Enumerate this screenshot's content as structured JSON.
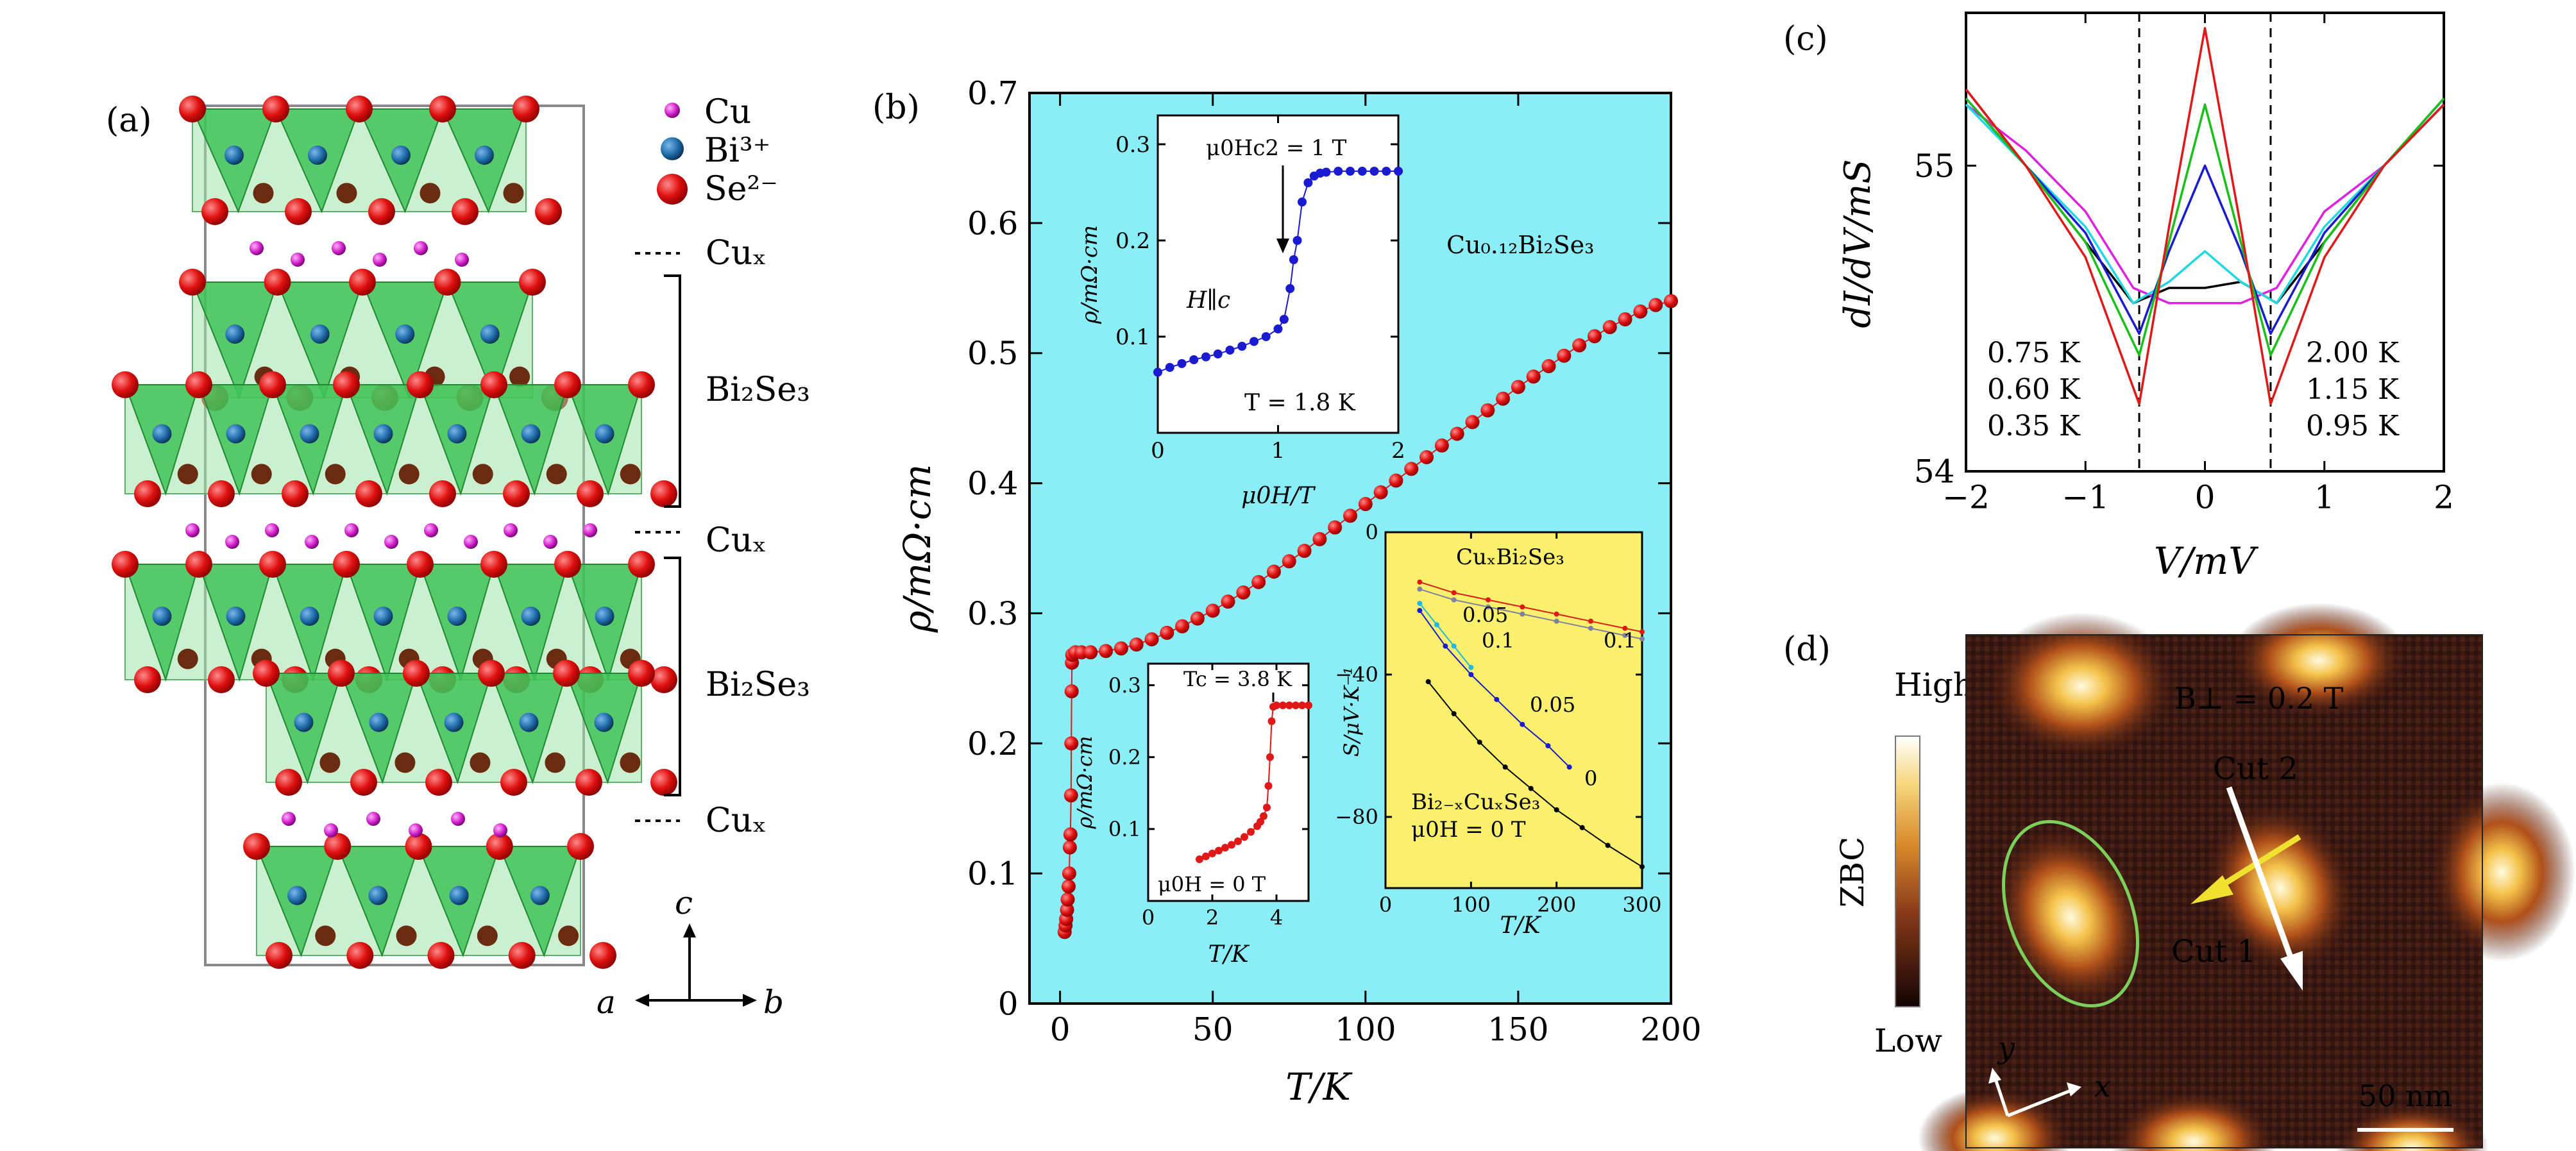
{
  "panel_a": {
    "label": "(a)",
    "legend": [
      {
        "text": "Cu",
        "color": "#d020c8"
      },
      {
        "text": "Bi³⁺",
        "color": "#1e6aa8"
      },
      {
        "text": "Se²⁻",
        "color": "#e01010"
      }
    ],
    "layer_labels": [
      "Cuₓ",
      "Bi₂Se₃",
      "Cuₓ",
      "Bi₂Se₃",
      "Cuₓ"
    ],
    "axes": {
      "c": "c",
      "a": "a",
      "b": "b"
    },
    "colors": {
      "octahedron": "#2fbe4a",
      "octahedron_light": "#9ee3a8",
      "se": "#e01010",
      "bi": "#1e6aa8",
      "cu": "#d020c8"
    }
  },
  "panel_b": {
    "label": "(b)",
    "background": "#8aeef6",
    "compound": "Cu₀.₁₂Bi₂Se₃",
    "xlabel": "T/K",
    "ylabel": "ρ/mΩ·cm",
    "xticks": [
      "0",
      "50",
      "100",
      "150",
      "200"
    ],
    "yticks": [
      "0",
      "0.1",
      "0.2",
      "0.3",
      "0.4",
      "0.5",
      "0.6",
      "0.7"
    ],
    "inset_field": {
      "annotation": "μ0Hc2 = 1 T",
      "orientation": "H∥c",
      "temperature": "T = 1.8 K",
      "xlabel": "μ0H/T",
      "ylabel": "ρ/mΩ·cm",
      "xticks": [
        "0",
        "1",
        "2"
      ],
      "yticks": [
        "0.1",
        "0.2",
        "0.3"
      ]
    },
    "inset_tc": {
      "annotation": "Tc = 3.8 K",
      "field": "μ0H = 0 T",
      "xlabel": "T/K",
      "ylabel": "ρ/mΩ·cm",
      "xticks": [
        "0",
        "2",
        "4"
      ],
      "yticks": [
        "0.1",
        "0.2",
        "0.3"
      ]
    },
    "inset_seebeck": {
      "background": "#fbf06b",
      "title": "CuₓBi₂Se₃",
      "lower_title": "Bi₂₋ₓCuₓSe₃",
      "field": "μ0H = 0 T",
      "xlabel": "T/K",
      "ylabel": "S/μV·K⁻¹",
      "xticks": [
        "0",
        "100",
        "200",
        "300"
      ],
      "yticks": [
        "0",
        "−40",
        "−80"
      ],
      "curve_labels": [
        "0.05",
        "0.1",
        "0.1",
        "0.05",
        "0"
      ]
    }
  },
  "panel_c": {
    "label": "(c)",
    "xlabel": "V/mV",
    "ylabel": "dI/dV/mS",
    "xticks": [
      "−2",
      "−1",
      "0",
      "1",
      "2"
    ],
    "yticks": [
      "54",
      "55"
    ],
    "legend_left": [
      {
        "text": "0.75 K",
        "color": "#1a1ad0"
      },
      {
        "text": "0.60 K",
        "color": "#18c018"
      },
      {
        "text": "0.35 K",
        "color": "#e01818"
      }
    ],
    "legend_right": [
      {
        "text": "2.00 K",
        "color": "#000000"
      },
      {
        "text": "1.15 K",
        "color": "#e020e0"
      },
      {
        "text": "0.95 K",
        "color": "#20d8e0"
      }
    ]
  },
  "panel_d": {
    "label": "(d)",
    "field": "B⊥ = 0.2 T",
    "colorbar": {
      "label": "ZBC",
      "high": "High",
      "low": "Low"
    },
    "cut1": "Cut 1",
    "cut2": "Cut 2",
    "axis_x": "x",
    "axis_y": "y",
    "scalebar": "50 nm"
  },
  "chart_data": [
    {
      "type": "scatter",
      "panel": "b-main",
      "xlabel": "T/K",
      "ylabel": "ρ/mΩ·cm",
      "xlim": [
        -10,
        200
      ],
      "ylim": [
        0,
        0.7
      ],
      "series": [
        {
          "name": "Cu₀.₁₂Bi₂Se₃",
          "color": "#e01818",
          "x": [
            1.5,
            1.8,
            2.0,
            2.3,
            2.5,
            2.8,
            3.0,
            3.2,
            3.4,
            3.6,
            3.7,
            3.8,
            3.9,
            4.0,
            5,
            7,
            10,
            15,
            20,
            25,
            30,
            35,
            40,
            45,
            50,
            55,
            60,
            65,
            70,
            75,
            80,
            85,
            90,
            95,
            100,
            105,
            110,
            115,
            120,
            125,
            130,
            135,
            140,
            145,
            150,
            155,
            160,
            165,
            170,
            175,
            180,
            185,
            190,
            195,
            200
          ],
          "y": [
            0.055,
            0.06,
            0.065,
            0.072,
            0.08,
            0.09,
            0.1,
            0.12,
            0.13,
            0.16,
            0.2,
            0.24,
            0.262,
            0.268,
            0.27,
            0.27,
            0.27,
            0.271,
            0.273,
            0.276,
            0.28,
            0.285,
            0.29,
            0.296,
            0.302,
            0.309,
            0.316,
            0.324,
            0.332,
            0.34,
            0.348,
            0.357,
            0.366,
            0.375,
            0.384,
            0.393,
            0.402,
            0.411,
            0.42,
            0.429,
            0.438,
            0.447,
            0.456,
            0.465,
            0.474,
            0.482,
            0.49,
            0.498,
            0.506,
            0.513,
            0.52,
            0.526,
            0.532,
            0.537,
            0.54
          ]
        }
      ]
    },
    {
      "type": "scatter",
      "panel": "b-inset-field",
      "xlabel": "μ0H/T",
      "ylabel": "ρ/mΩ·cm",
      "xlim": [
        0,
        2
      ],
      "ylim": [
        0.0,
        0.33
      ],
      "series": [
        {
          "name": "H∥c, T = 1.8 K",
          "color": "#1a1ad0",
          "x": [
            0,
            0.1,
            0.2,
            0.3,
            0.4,
            0.5,
            0.6,
            0.7,
            0.8,
            0.9,
            1.0,
            1.05,
            1.1,
            1.13,
            1.16,
            1.2,
            1.25,
            1.3,
            1.35,
            1.4,
            1.5,
            1.6,
            1.7,
            1.8,
            1.9,
            2.0
          ],
          "y": [
            0.063,
            0.068,
            0.072,
            0.076,
            0.079,
            0.082,
            0.086,
            0.09,
            0.095,
            0.1,
            0.108,
            0.118,
            0.15,
            0.18,
            0.2,
            0.24,
            0.26,
            0.267,
            0.27,
            0.271,
            0.272,
            0.272,
            0.272,
            0.272,
            0.272,
            0.272
          ]
        }
      ]
    },
    {
      "type": "scatter",
      "panel": "b-inset-tc",
      "xlabel": "T/K",
      "ylabel": "ρ/mΩ·cm",
      "xlim": [
        0,
        5
      ],
      "ylim": [
        0.0,
        0.33
      ],
      "series": [
        {
          "name": "μ0H = 0 T",
          "color": "#e01818",
          "x": [
            1.6,
            1.8,
            2.0,
            2.2,
            2.4,
            2.6,
            2.8,
            3.0,
            3.2,
            3.4,
            3.5,
            3.6,
            3.7,
            3.75,
            3.8,
            3.85,
            3.9,
            4.0,
            4.2,
            4.4,
            4.6,
            4.8,
            5.0
          ],
          "y": [
            0.058,
            0.062,
            0.066,
            0.07,
            0.074,
            0.078,
            0.083,
            0.089,
            0.096,
            0.104,
            0.11,
            0.118,
            0.13,
            0.16,
            0.2,
            0.25,
            0.27,
            0.272,
            0.272,
            0.272,
            0.272,
            0.272,
            0.272
          ]
        }
      ]
    },
    {
      "type": "line",
      "panel": "b-inset-seebeck",
      "xlabel": "T/K",
      "ylabel": "S/μV·K⁻¹",
      "xlim": [
        0,
        300
      ],
      "ylim": [
        -100,
        0
      ],
      "series": [
        {
          "name": "0",
          "color": "#000000",
          "x": [
            50,
            80,
            110,
            140,
            170,
            200,
            230,
            260,
            300
          ],
          "y": [
            -42,
            -51,
            -59,
            -66,
            -72,
            -78,
            -83,
            -88,
            -94
          ]
        },
        {
          "name": "0.05",
          "color": "#1a1ad0",
          "x": [
            40,
            70,
            100,
            130,
            160,
            190,
            215
          ],
          "y": [
            -22,
            -32,
            -40,
            -47,
            -54,
            -60,
            -66
          ]
        },
        {
          "name": "0.1",
          "color": "#20b8e0",
          "x": [
            40,
            60,
            80,
            100
          ],
          "y": [
            -20,
            -26,
            -32,
            -38
          ]
        },
        {
          "name": "CuₓBi₂Se₃ 0.1",
          "color": "#e01818",
          "x": [
            40,
            80,
            120,
            160,
            200,
            240,
            280,
            300
          ],
          "y": [
            -14,
            -17,
            -19,
            -21,
            -23,
            -25,
            -27,
            -28
          ]
        },
        {
          "name": "CuₓBi₂Se₃ 0.05",
          "color": "#8080a0",
          "x": [
            40,
            80,
            120,
            160,
            200,
            240,
            280,
            300
          ],
          "y": [
            -16,
            -19,
            -21,
            -23,
            -25,
            -27,
            -29,
            -30
          ]
        }
      ]
    },
    {
      "type": "line",
      "panel": "c",
      "xlabel": "V/mV",
      "ylabel": "dI/dV/mS",
      "xlim": [
        -2,
        2
      ],
      "ylim": [
        54,
        55.5
      ],
      "series": [
        {
          "name": "2.00 K",
          "color": "#000000",
          "x": [
            -2,
            -1.5,
            -1.0,
            -0.6,
            -0.3,
            0,
            0.3,
            0.6,
            1.0,
            1.5,
            2
          ],
          "y": [
            55.25,
            55.0,
            54.75,
            54.55,
            54.6,
            54.6,
            54.62,
            54.55,
            54.75,
            55.0,
            55.2
          ]
        },
        {
          "name": "1.15 K",
          "color": "#e020e0",
          "x": [
            -2,
            -1.5,
            -1.0,
            -0.6,
            -0.3,
            0,
            0.3,
            0.6,
            1.0,
            1.5,
            2
          ],
          "y": [
            55.2,
            55.05,
            54.85,
            54.6,
            54.55,
            54.55,
            54.55,
            54.6,
            54.85,
            55.0,
            55.2
          ]
        },
        {
          "name": "0.95 K",
          "color": "#20d8e0",
          "x": [
            -2,
            -1.5,
            -1.0,
            -0.6,
            -0.3,
            0,
            0.3,
            0.6,
            1.0,
            1.5,
            2
          ],
          "y": [
            55.2,
            55.0,
            54.8,
            54.55,
            54.62,
            54.72,
            54.62,
            54.55,
            54.8,
            55.0,
            55.2
          ]
        },
        {
          "name": "0.75 K",
          "color": "#1a1ad0",
          "x": [
            -2,
            -1.5,
            -1.0,
            -0.55,
            -0.3,
            0,
            0.3,
            0.55,
            1.0,
            1.5,
            2
          ],
          "y": [
            55.22,
            55.0,
            54.78,
            54.45,
            54.72,
            55.0,
            54.72,
            54.45,
            54.78,
            55.0,
            55.22
          ]
        },
        {
          "name": "0.60 K",
          "color": "#18c018",
          "x": [
            -2,
            -1.5,
            -1.0,
            -0.55,
            -0.3,
            0,
            0.3,
            0.55,
            1.0,
            1.5,
            2
          ],
          "y": [
            55.22,
            55.0,
            54.75,
            54.38,
            54.75,
            55.2,
            54.75,
            54.38,
            54.75,
            55.0,
            55.22
          ]
        },
        {
          "name": "0.35 K",
          "color": "#e01818",
          "x": [
            -2,
            -1.5,
            -1.0,
            -0.55,
            -0.3,
            0,
            0.3,
            0.55,
            1.0,
            1.5,
            2
          ],
          "y": [
            55.25,
            55.0,
            54.7,
            54.22,
            54.8,
            55.45,
            54.8,
            54.22,
            54.7,
            55.0,
            55.2
          ]
        }
      ]
    }
  ]
}
